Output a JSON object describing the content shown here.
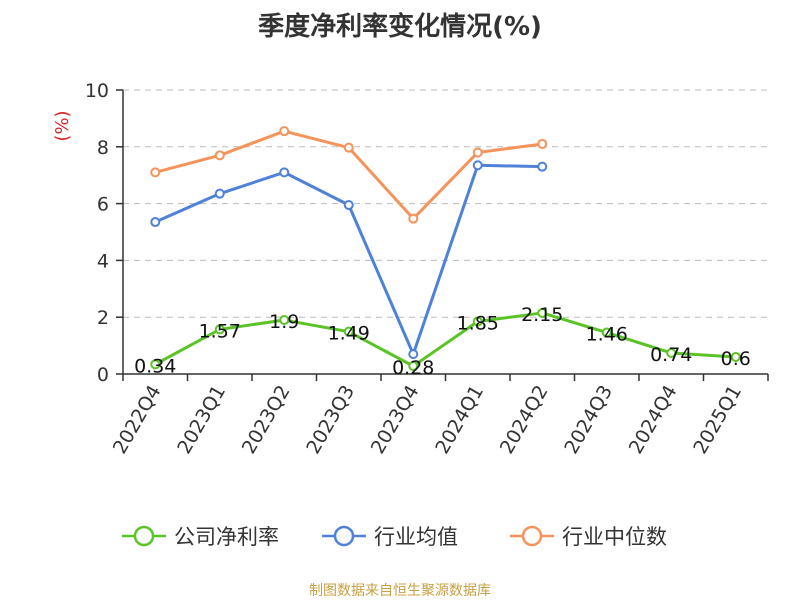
{
  "chart_data": {
    "type": "line",
    "title": "季度净利率变化情况(%)",
    "ylabel": "(%)",
    "ylim": [
      0,
      10
    ],
    "yticks": [
      0,
      2,
      4,
      6,
      8,
      10
    ],
    "grid": true,
    "legend_position": "bottom",
    "categories": [
      "2022Q4",
      "2023Q1",
      "2023Q2",
      "2023Q3",
      "2023Q4",
      "2024Q1",
      "2024Q2",
      "2024Q3",
      "2024Q4",
      "2025Q1"
    ],
    "series": [
      {
        "name": "公司净利率",
        "color": "#5cc326",
        "show_labels": true,
        "values": [
          0.34,
          1.57,
          1.9,
          1.49,
          0.28,
          1.85,
          2.15,
          1.46,
          0.74,
          0.6
        ]
      },
      {
        "name": "行业均值",
        "color": "#4f81d8",
        "show_labels": false,
        "values": [
          5.35,
          6.35,
          7.1,
          5.95,
          0.7,
          7.35,
          7.3,
          null,
          null,
          null
        ]
      },
      {
        "name": "行业中位数",
        "color": "#f4935a",
        "show_labels": false,
        "values": [
          7.1,
          7.7,
          8.55,
          7.97,
          5.47,
          7.8,
          8.1,
          null,
          null,
          null
        ]
      }
    ]
  },
  "source_note": "制图数据来自恒生聚源数据库",
  "colors": {
    "ylabel": "#d62728",
    "axis": "#333333",
    "grid": "#bbbbbb"
  }
}
